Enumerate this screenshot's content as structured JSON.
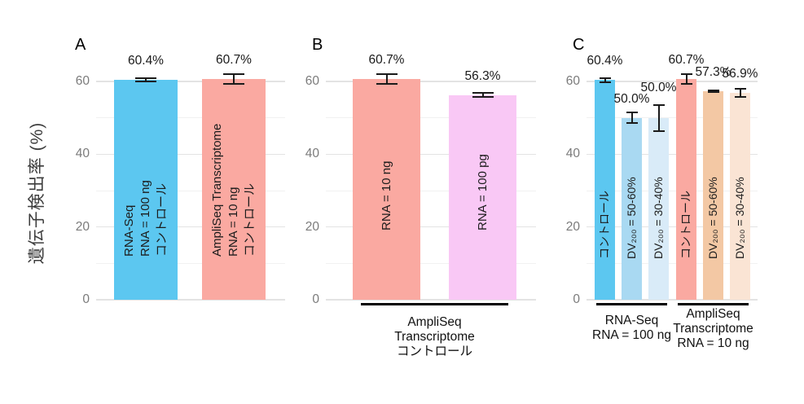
{
  "figure": {
    "y_axis_title": "遺伝子検出率 (%)",
    "background": "#FFFFFF",
    "grid_major_color": "#E3E3E3",
    "grid_minor_color": "#F1F1F1",
    "tick_color": "#7B7B7B",
    "error_bar_color": "#1A1A1A"
  },
  "chart_data": [
    {
      "panel": "A",
      "type": "bar",
      "ylabel": "遺伝子検出率 (%)",
      "ylim": [
        0,
        63
      ],
      "yticks": [
        0,
        20,
        40,
        60
      ],
      "yticks_minor": [
        10,
        30,
        50
      ],
      "grid": true,
      "bars": [
        {
          "label_lines": [
            "RNA-Seq",
            "RNA = 100 ng",
            "コントロール"
          ],
          "value": 60.4,
          "error": 0.5,
          "value_label": "60.4%",
          "color": "#5CC7F0"
        },
        {
          "label_lines": [
            "AmpliSeq Transcriptome",
            "RNA = 10 ng",
            "コントロール"
          ],
          "value": 60.7,
          "error": 1.4,
          "value_label": "60.7%",
          "color": "#FAA9A1"
        }
      ]
    },
    {
      "panel": "B",
      "type": "bar",
      "ylabel": "遺伝子検出率 (%)",
      "ylim": [
        0,
        63
      ],
      "yticks": [
        0,
        20,
        40,
        60
      ],
      "yticks_minor": [
        10,
        30,
        50
      ],
      "grid": true,
      "bars": [
        {
          "label_lines": [
            "RNA = 10 ng"
          ],
          "value": 60.7,
          "error": 1.4,
          "value_label": "60.7%",
          "color": "#FAA9A1"
        },
        {
          "label_lines": [
            "RNA = 100 pg"
          ],
          "value": 56.3,
          "error": 0.6,
          "value_label": "56.3%",
          "color": "#F9C8F5"
        }
      ],
      "groups": [
        {
          "label_lines": [
            "AmpliSeq",
            "Transcriptome",
            "コントロール"
          ],
          "span": [
            0,
            1
          ]
        }
      ]
    },
    {
      "panel": "C",
      "type": "bar",
      "ylabel": "遺伝子検出率 (%)",
      "ylim": [
        0,
        63
      ],
      "yticks": [
        0,
        20,
        40,
        60
      ],
      "yticks_minor": [
        10,
        30,
        50
      ],
      "grid": true,
      "bars": [
        {
          "label_lines": [
            "コントロール"
          ],
          "value": 60.4,
          "error": 0.6,
          "value_label": "60.4%",
          "color": "#5CC7F0"
        },
        {
          "label_lines": [
            "DV₂₀₀ = 50-60%"
          ],
          "value": 50.0,
          "error": 1.5,
          "value_label": "50.0%",
          "color": "#A9D9F2"
        },
        {
          "label_lines": [
            "DV₂₀₀ = 30-40%"
          ],
          "value": 50.0,
          "error": 3.6,
          "value_label": "50.0%",
          "color": "#D9EBF8",
          "label_nudge": 14
        },
        {
          "label_lines": [
            "コントロール"
          ],
          "value": 60.7,
          "error": 1.4,
          "value_label": "60.7%",
          "color": "#FAA9A1"
        },
        {
          "label_lines": [
            "DV₂₀₀ = 50-60%"
          ],
          "value": 57.3,
          "error": 0.3,
          "value_label": "57.3%",
          "color": "#F3C8A4"
        },
        {
          "label_lines": [
            "DV₂₀₀ = 30-40%"
          ],
          "value": 56.9,
          "error": 1.1,
          "value_label": "56.9%",
          "color": "#FAE4D4"
        }
      ],
      "groups": [
        {
          "label_lines": [
            "RNA-Seq",
            "RNA = 100 ng"
          ],
          "span": [
            0,
            2
          ]
        },
        {
          "label_lines": [
            "AmpliSeq",
            "Transcriptome",
            "RNA = 10 ng"
          ],
          "span": [
            3,
            5
          ]
        }
      ]
    }
  ]
}
